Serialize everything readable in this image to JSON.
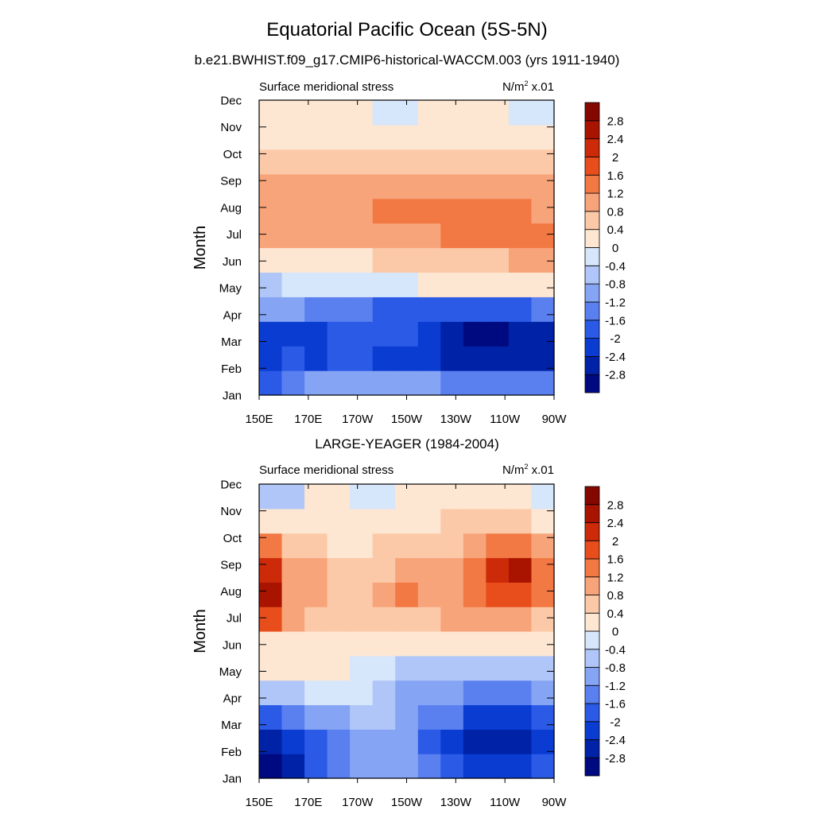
{
  "figure": {
    "title": "Equatorial Pacific Ocean (5S-5N)",
    "subtitle": "b.e21.BWHIST.f09_g17.CMIP6-historical-WACCM.003 (yrs 1911-1940)"
  },
  "chart_data": [
    {
      "type": "heatmap",
      "title": "",
      "left_label": "Surface meridional stress",
      "right_label": "N/m",
      "right_label_sup": "2",
      "right_label_suffix": " x.01",
      "ylabel": "Month",
      "xlabel": "",
      "x_ticks": [
        "150E",
        "170E",
        "170W",
        "150W",
        "130W",
        "110W",
        "90W"
      ],
      "y_ticks": [
        "Jan",
        "Feb",
        "Mar",
        "Apr",
        "May",
        "Jun",
        "Jul",
        "Aug",
        "Sep",
        "Oct",
        "Nov",
        "Dec"
      ],
      "x": [
        150,
        160,
        170,
        180,
        190,
        200,
        210,
        220,
        230,
        240,
        250,
        260,
        270
      ],
      "y": [
        "Jan",
        "Feb",
        "Mar",
        "Apr",
        "May",
        "Jun",
        "Jul",
        "Aug",
        "Sep",
        "Oct",
        "Nov",
        "Dec"
      ],
      "values": [
        [
          -1.8,
          -1.4,
          -1.0,
          -1.0,
          -1.0,
          -1.0,
          -1.0,
          -1.0,
          -1.2,
          -1.2,
          -1.2,
          -1.2,
          -1.2
        ],
        [
          -2.2,
          -1.8,
          -2.2,
          -1.8,
          -1.8,
          -2.0,
          -2.0,
          -2.2,
          -2.4,
          -2.6,
          -2.6,
          -2.6,
          -2.4
        ],
        [
          -2.2,
          -2.0,
          -2.2,
          -1.8,
          -1.8,
          -1.8,
          -1.8,
          -2.2,
          -2.6,
          -2.8,
          -2.8,
          -2.6,
          -2.4
        ],
        [
          -1.0,
          -1.0,
          -1.2,
          -1.2,
          -1.4,
          -1.6,
          -1.6,
          -1.8,
          -1.8,
          -1.8,
          -1.6,
          -1.6,
          -1.4
        ],
        [
          -0.6,
          -0.2,
          -0.2,
          -0.2,
          -0.2,
          -0.2,
          -0.2,
          0.2,
          0.2,
          0.2,
          0.2,
          0.2,
          0.2
        ],
        [
          0.4,
          0.4,
          0.4,
          0.4,
          0.4,
          0.6,
          0.6,
          0.6,
          0.8,
          0.8,
          0.8,
          1.0,
          1.0
        ],
        [
          1.0,
          1.0,
          1.0,
          1.0,
          1.2,
          1.2,
          1.2,
          1.2,
          1.4,
          1.4,
          1.4,
          1.6,
          1.4
        ],
        [
          1.2,
          1.0,
          1.0,
          1.0,
          1.2,
          1.4,
          1.4,
          1.4,
          1.4,
          1.4,
          1.4,
          1.4,
          1.2
        ],
        [
          1.0,
          1.0,
          1.0,
          1.0,
          1.0,
          1.0,
          1.2,
          1.2,
          1.2,
          1.2,
          1.2,
          1.0,
          1.0
        ],
        [
          0.8,
          0.8,
          0.6,
          0.6,
          0.8,
          0.8,
          0.8,
          0.8,
          0.8,
          0.8,
          0.8,
          0.8,
          0.8
        ],
        [
          0.4,
          0.4,
          0.4,
          0.4,
          0.4,
          0.4,
          0.4,
          0.4,
          0.4,
          0.4,
          0.4,
          0.4,
          0.4
        ],
        [
          0.2,
          0.2,
          0.2,
          0.2,
          0.2,
          -0.2,
          -0.2,
          0.2,
          0.2,
          0.2,
          0.2,
          -0.2,
          -0.2
        ]
      ],
      "levels": [
        -2.8,
        -2.4,
        -2.0,
        -1.6,
        -1.2,
        -0.8,
        -0.4,
        0,
        0.4,
        0.8,
        1.2,
        1.6,
        2.0,
        2.4,
        2.8
      ],
      "colors": [
        "#000a80",
        "#0022a6",
        "#0a3cd2",
        "#2a5ae6",
        "#5a80f0",
        "#86a4f4",
        "#b0c6f8",
        "#d6e6fb",
        "#fde6d2",
        "#fbc9a8",
        "#f8a47a",
        "#f27844",
        "#e84e1c",
        "#cc2a08",
        "#a81400",
        "#850800"
      ],
      "colorbar_labels": [
        "2.8",
        "2.4",
        "2",
        "1.6",
        "1.2",
        "0.8",
        "0.4",
        "0",
        "-0.4",
        "-0.8",
        "-1.2",
        "-1.6",
        "-2",
        "-2.4",
        "-2.8"
      ]
    },
    {
      "type": "heatmap",
      "title": "LARGE-YEAGER (1984-2004)",
      "left_label": "Surface meridional stress",
      "right_label": "N/m",
      "right_label_sup": "2",
      "right_label_suffix": " x.01",
      "ylabel": "Month",
      "xlabel": "",
      "x_ticks": [
        "150E",
        "170E",
        "170W",
        "150W",
        "130W",
        "110W",
        "90W"
      ],
      "y_ticks": [
        "Jan",
        "Feb",
        "Mar",
        "Apr",
        "May",
        "Jun",
        "Jul",
        "Aug",
        "Sep",
        "Oct",
        "Nov",
        "Dec"
      ],
      "x": [
        150,
        160,
        170,
        180,
        190,
        200,
        210,
        220,
        230,
        240,
        250,
        260,
        270
      ],
      "y": [
        "Jan",
        "Feb",
        "Mar",
        "Apr",
        "May",
        "Jun",
        "Jul",
        "Aug",
        "Sep",
        "Oct",
        "Nov",
        "Dec"
      ],
      "values": [
        [
          -3.0,
          -2.4,
          -1.6,
          -1.2,
          -0.8,
          -0.8,
          -0.8,
          -1.2,
          -1.6,
          -2.0,
          -2.2,
          -2.2,
          -1.8
        ],
        [
          -2.6,
          -2.0,
          -1.6,
          -1.2,
          -0.8,
          -0.8,
          -1.0,
          -1.6,
          -2.0,
          -2.4,
          -2.6,
          -2.6,
          -2.0
        ],
        [
          -1.8,
          -1.2,
          -1.0,
          -0.8,
          -0.4,
          -0.4,
          -0.8,
          -1.2,
          -1.4,
          -2.0,
          -2.2,
          -2.2,
          -1.8
        ],
        [
          -0.6,
          -0.4,
          -0.2,
          -0.2,
          -0.2,
          -0.4,
          -0.8,
          -1.0,
          -1.0,
          -1.2,
          -1.2,
          -1.2,
          -1.0
        ],
        [
          0.2,
          0.2,
          0.2,
          0.2,
          -0.2,
          -0.2,
          -0.4,
          -0.6,
          -0.6,
          -0.6,
          -0.6,
          -0.6,
          -0.4
        ],
        [
          0.4,
          0.4,
          0.4,
          0.2,
          0.2,
          0.2,
          0.2,
          0.2,
          0.2,
          0.2,
          0.2,
          0.2,
          0.2
        ],
        [
          1.8,
          1.0,
          0.8,
          0.6,
          0.6,
          0.6,
          0.8,
          0.8,
          1.0,
          1.2,
          1.2,
          1.0,
          0.8
        ],
        [
          2.6,
          1.2,
          1.0,
          0.8,
          0.8,
          1.0,
          1.6,
          1.0,
          1.2,
          1.4,
          1.8,
          1.8,
          1.6
        ],
        [
          2.2,
          1.0,
          1.0,
          0.6,
          0.6,
          0.8,
          1.2,
          1.0,
          1.2,
          1.6,
          2.2,
          2.8,
          1.6
        ],
        [
          1.4,
          0.8,
          0.6,
          0.4,
          0.4,
          0.6,
          0.6,
          0.6,
          0.8,
          1.2,
          1.6,
          1.6,
          1.0
        ],
        [
          0.4,
          0.2,
          0.2,
          0.2,
          0.2,
          0.2,
          0.4,
          0.4,
          0.6,
          0.6,
          0.8,
          0.8,
          0.4
        ],
        [
          -0.4,
          -0.4,
          0.2,
          0.2,
          -0.2,
          -0.2,
          0.2,
          0.2,
          0.2,
          0.2,
          0.2,
          0.2,
          -0.2
        ]
      ],
      "levels": [
        -2.8,
        -2.4,
        -2.0,
        -1.6,
        -1.2,
        -0.8,
        -0.4,
        0,
        0.4,
        0.8,
        1.2,
        1.6,
        2.0,
        2.4,
        2.8
      ],
      "colors": [
        "#000a80",
        "#0022a6",
        "#0a3cd2",
        "#2a5ae6",
        "#5a80f0",
        "#86a4f4",
        "#b0c6f8",
        "#d6e6fb",
        "#fde6d2",
        "#fbc9a8",
        "#f8a47a",
        "#f27844",
        "#e84e1c",
        "#cc2a08",
        "#a81400",
        "#850800"
      ],
      "colorbar_labels": [
        "2.8",
        "2.4",
        "2",
        "1.6",
        "1.2",
        "0.8",
        "0.4",
        "0",
        "-0.4",
        "-0.8",
        "-1.2",
        "-1.6",
        "-2",
        "-2.4",
        "-2.8"
      ]
    }
  ]
}
